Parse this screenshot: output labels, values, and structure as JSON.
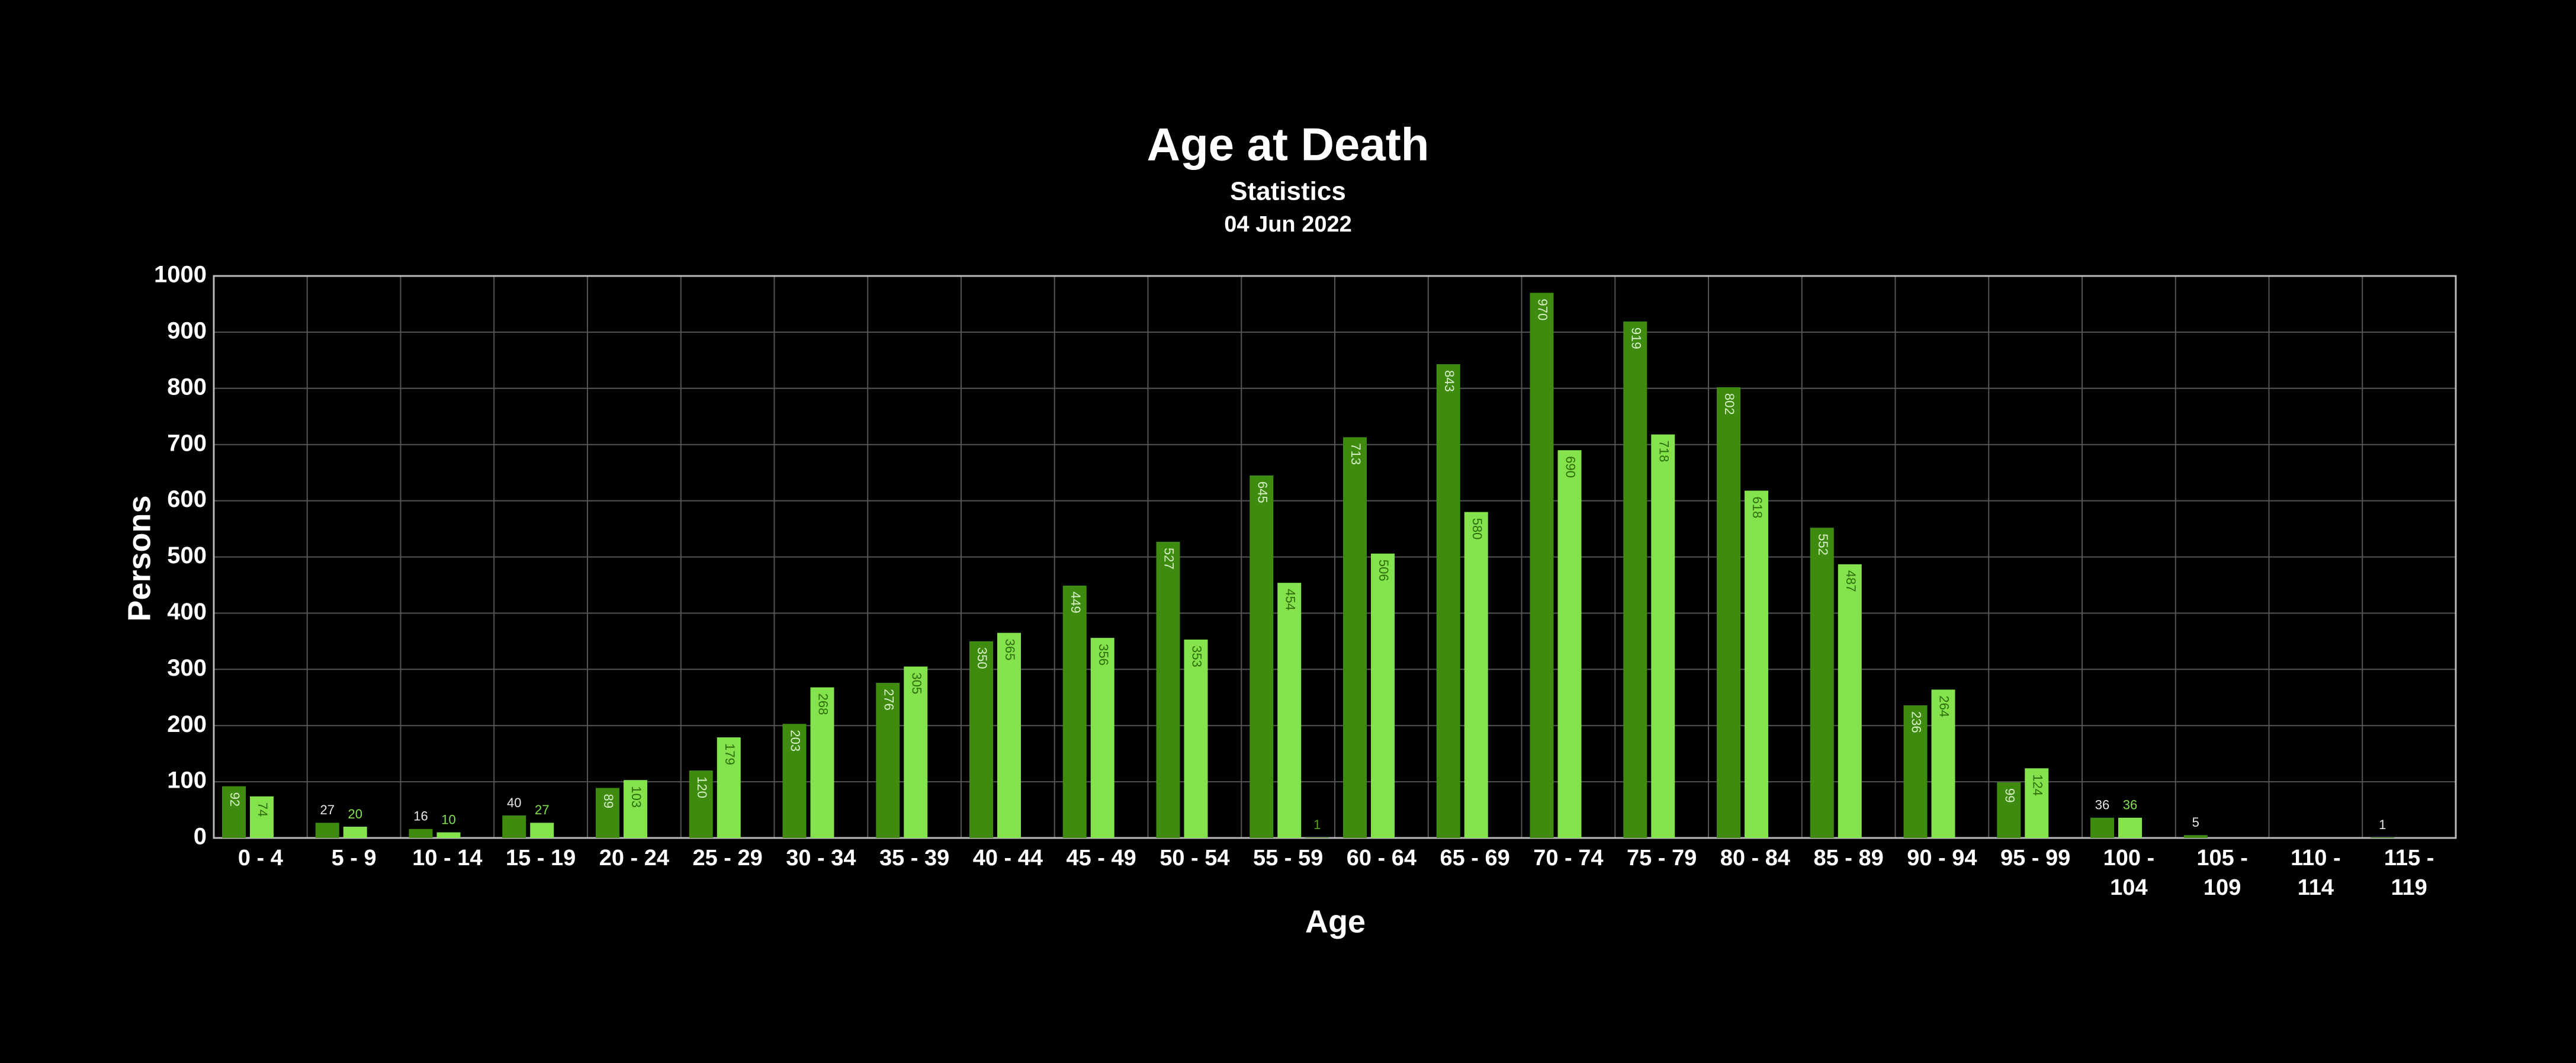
{
  "chart_data": {
    "type": "bar",
    "title": "Age at Death",
    "subtitle": "Statistics",
    "date": "04 Jun 2022",
    "x_label": "Age",
    "y_label": "Persons",
    "categories": [
      "0 - 4",
      "5 - 9",
      "10 - 14",
      "15 - 19",
      "20 - 24",
      "25 - 29",
      "30 - 34",
      "35 - 39",
      "40 - 44",
      "45 - 49",
      "50 - 54",
      "55 - 59",
      "60 - 64",
      "65 - 69",
      "70 - 74",
      "75 - 79",
      "80 - 84",
      "85 - 89",
      "90 - 94",
      "95 - 99",
      "100 - 104",
      "105 - 109",
      "110 - 114",
      "115 - 119"
    ],
    "series": [
      {
        "color": "#3e8b10",
        "values": [
          92,
          27,
          16,
          40,
          89,
          120,
          203,
          276,
          350,
          449,
          527,
          645,
          713,
          843,
          970,
          919,
          802,
          552,
          236,
          99,
          36,
          5,
          null,
          1
        ]
      },
      {
        "color": "#84e24c",
        "values": [
          74,
          20,
          10,
          27,
          103,
          179,
          268,
          305,
          365,
          356,
          353,
          454,
          506,
          580,
          690,
          718,
          618,
          487,
          264,
          124,
          36,
          null,
          null,
          null
        ]
      },
      {
        "color": "#5aa02c",
        "values": [
          null,
          null,
          null,
          null,
          null,
          null,
          null,
          null,
          null,
          null,
          null,
          1,
          null,
          null,
          null,
          null,
          null,
          null,
          null,
          null,
          null,
          null,
          null,
          null
        ]
      }
    ],
    "ylim": [
      0,
      1000
    ],
    "yticks": [
      0,
      100,
      200,
      300,
      400,
      500,
      600,
      700,
      800,
      900,
      1000
    ],
    "grid": true
  }
}
